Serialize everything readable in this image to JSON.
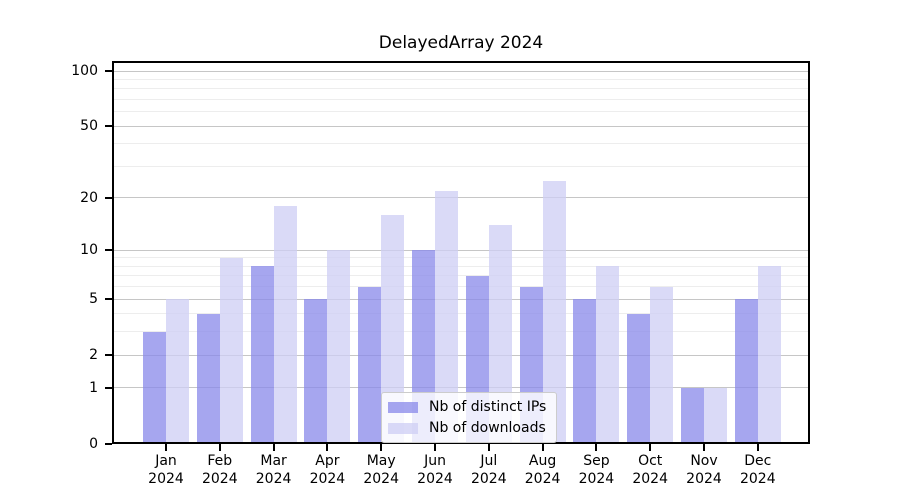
{
  "chart_data": {
    "type": "bar",
    "title": "DelayedArray 2024",
    "categories": [
      "Jan 2024",
      "Feb 2024",
      "Mar 2024",
      "Apr 2024",
      "May 2024",
      "Jun 2024",
      "Jul 2024",
      "Aug 2024",
      "Sep 2024",
      "Oct 2024",
      "Nov 2024",
      "Dec 2024"
    ],
    "series": [
      {
        "name": "Nb of distinct IPs",
        "color": "#8888e9",
        "values": [
          3,
          4,
          8,
          5,
          6,
          10,
          7,
          6,
          5,
          4,
          1,
          5
        ]
      },
      {
        "name": "Nb of downloads",
        "color": "#cdcdf4",
        "values": [
          5,
          9,
          18,
          10,
          16,
          22,
          14,
          25,
          8,
          6,
          1,
          8
        ]
      }
    ],
    "bar_alpha": 0.75,
    "xlabel": "",
    "ylabel": "",
    "yscale": "log1p",
    "ylim": [
      0,
      110
    ],
    "y_major_ticks": [
      100,
      50,
      20,
      10,
      5,
      2,
      1,
      0
    ],
    "y_minor_gridlines": [
      90,
      80,
      70,
      60,
      40,
      30,
      9,
      8,
      7,
      6,
      4,
      3
    ],
    "grid": true,
    "legend_position": "lower-center",
    "colors": {
      "major_grid": "#c6c6c6",
      "minor_grid": "#ededed",
      "spine": "#000000",
      "legend_border": "#cccccc",
      "text": "#000000"
    }
  }
}
